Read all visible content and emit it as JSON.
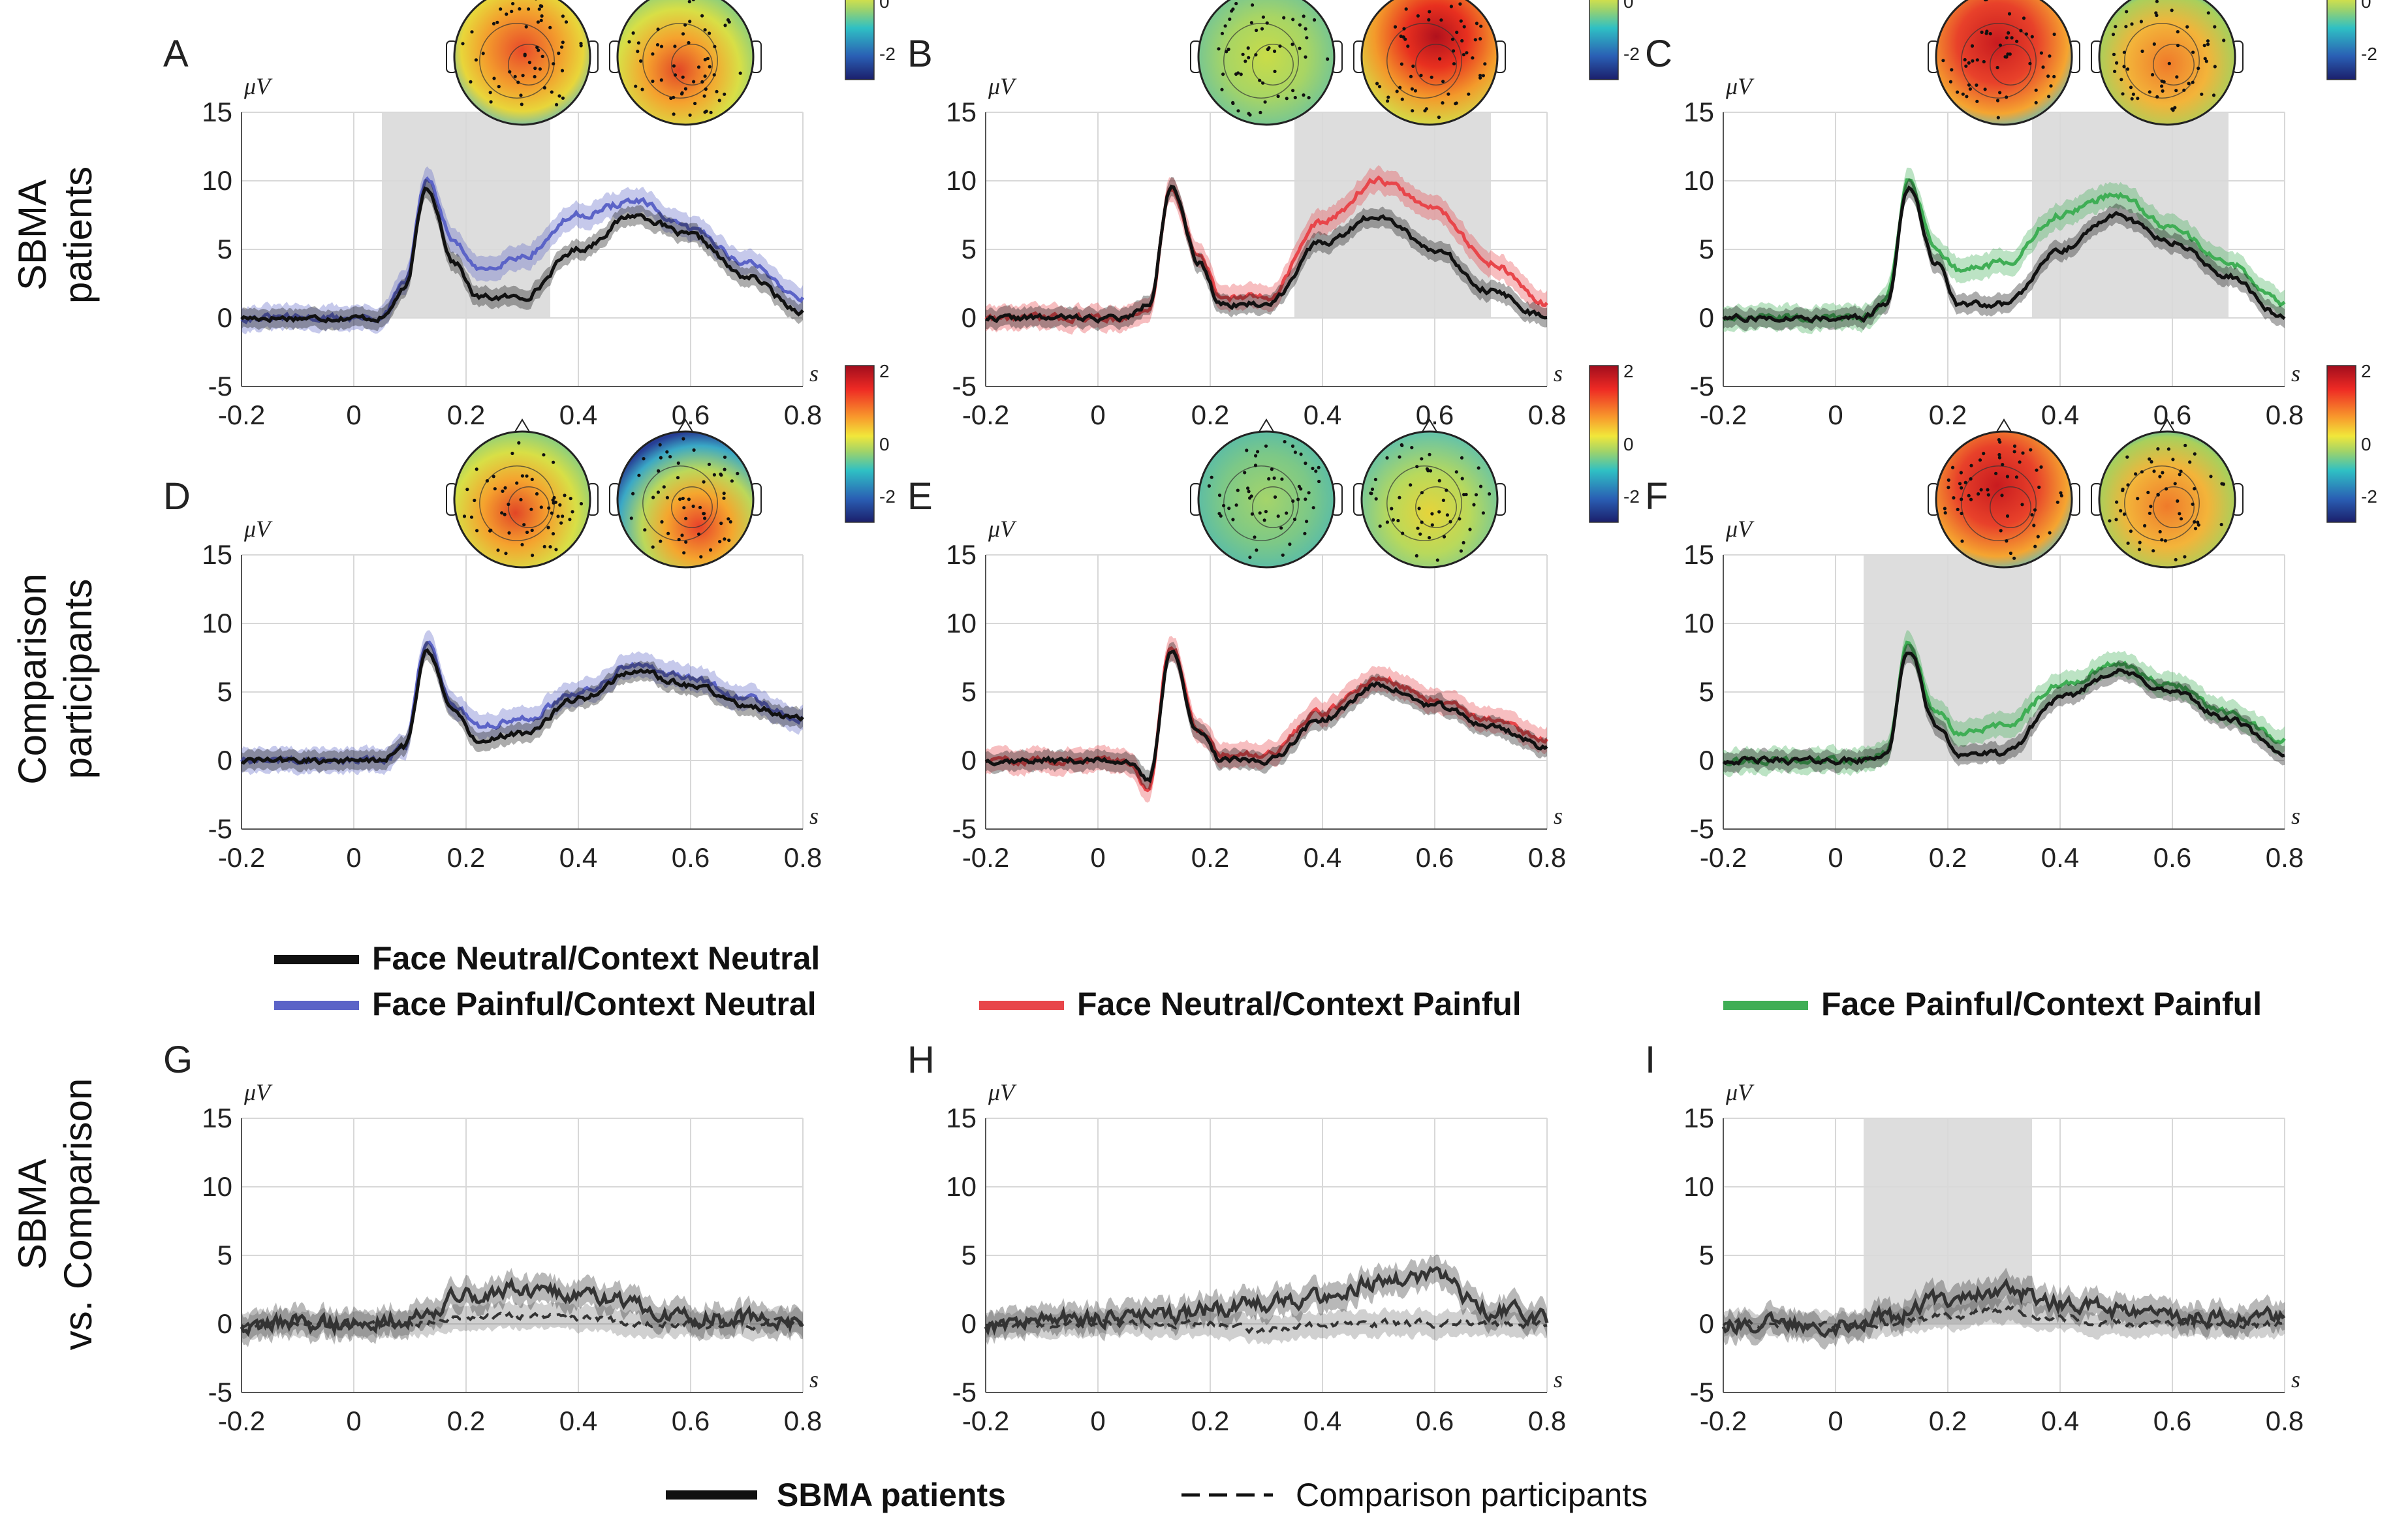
{
  "row_labels": {
    "row1": [
      "SBMA",
      "patients"
    ],
    "row2": [
      "Comparison",
      "participants"
    ],
    "row3": [
      "SBMA",
      "vs. Comparison"
    ]
  },
  "axes": {
    "y_unit": "μV",
    "x_unit": "s",
    "xlim": [
      -0.2,
      0.8
    ],
    "ylim": [
      -5,
      15
    ],
    "xticks": [
      -0.2,
      0,
      0.2,
      0.4,
      0.6,
      0.8
    ],
    "xtick_labels": [
      "-0.2",
      "0",
      "0.2",
      "0.4",
      "0.6",
      "0.8"
    ],
    "yticks": [
      -5,
      0,
      5,
      10,
      15
    ],
    "ytick_labels": [
      "-5",
      "0",
      "5",
      "10",
      "15"
    ]
  },
  "colorbar_ticks": [
    "2",
    "0",
    "-2"
  ],
  "legend_conditions": [
    {
      "label": "Face Neutral/Context Neutral",
      "color": "#111111"
    },
    {
      "label": "Face Painful/Context Neutral",
      "color": "#5b63c7"
    },
    {
      "label": "Face Neutral/Context Painful",
      "color": "#e8454a"
    },
    {
      "label": "Face Painful/Context Painful",
      "color": "#3fae55"
    }
  ],
  "legend_groups": [
    {
      "label": "SBMA patients",
      "style": "solid"
    },
    {
      "label": "Comparison participants",
      "style": "dashed"
    }
  ],
  "colors": {
    "black": "#111111",
    "blue": "#5b63c7",
    "red": "#e8454a",
    "green": "#3fae55",
    "gray": "#555555",
    "shade": "#d9d9d9"
  },
  "chart_data": [
    {
      "panel": "A",
      "type": "line",
      "xlabel": "s",
      "ylabel": "μV",
      "xlim": [
        -0.2,
        0.8
      ],
      "ylim": [
        -5,
        15
      ],
      "highlight": [
        0.05,
        0.35
      ],
      "colorbar": true,
      "topo_types": [
        1,
        2
      ],
      "series": [
        {
          "name": "Face Neutral/Context Neutral",
          "color": "black",
          "role": "base"
        },
        {
          "name": "Face Painful/Context Neutral",
          "color": "blue",
          "role": "cond"
        }
      ],
      "x_key": [
        -0.2,
        0.0,
        0.05,
        0.09,
        0.13,
        0.18,
        0.22,
        0.3,
        0.4,
        0.5,
        0.6,
        0.7,
        0.8
      ],
      "base_values": [
        0,
        0,
        0,
        2,
        9.5,
        4,
        1.5,
        1.5,
        5,
        7.5,
        6,
        3,
        0.5
      ],
      "cond_values": [
        0,
        0,
        0,
        2.5,
        10,
        5.5,
        3.5,
        4.5,
        7.5,
        8.5,
        6.5,
        4,
        1.5
      ]
    },
    {
      "panel": "B",
      "type": "line",
      "xlabel": "s",
      "ylabel": "μV",
      "xlim": [
        -0.2,
        0.8
      ],
      "ylim": [
        -5,
        15
      ],
      "highlight": [
        0.35,
        0.7
      ],
      "colorbar": true,
      "topo_types": [
        3,
        4
      ],
      "series": [
        {
          "name": "Face Neutral/Context Neutral",
          "color": "black",
          "role": "base"
        },
        {
          "name": "Face Neutral/Context Painful",
          "color": "red",
          "role": "cond"
        }
      ],
      "x_key": [
        -0.2,
        0.0,
        0.05,
        0.09,
        0.13,
        0.18,
        0.22,
        0.3,
        0.4,
        0.5,
        0.6,
        0.7,
        0.8
      ],
      "base_values": [
        0,
        0,
        0,
        1,
        9.5,
        4,
        1,
        1,
        5.5,
        7.5,
        5,
        2,
        0
      ],
      "cond_values": [
        0,
        0,
        0,
        0.5,
        9.5,
        4.5,
        1.5,
        1.5,
        7,
        10,
        8,
        4,
        1
      ]
    },
    {
      "panel": "C",
      "type": "line",
      "xlabel": "s",
      "ylabel": "μV",
      "xlim": [
        -0.2,
        0.8
      ],
      "ylim": [
        -5,
        15
      ],
      "highlight": [
        0.35,
        0.7
      ],
      "colorbar": true,
      "topo_types": [
        5,
        6
      ],
      "series": [
        {
          "name": "Face Neutral/Context Neutral",
          "color": "black",
          "role": "base"
        },
        {
          "name": "Face Painful/Context Painful",
          "color": "green",
          "role": "cond"
        }
      ],
      "x_key": [
        -0.2,
        0.0,
        0.05,
        0.09,
        0.13,
        0.18,
        0.22,
        0.3,
        0.4,
        0.5,
        0.6,
        0.7,
        0.8
      ],
      "base_values": [
        0,
        0,
        0,
        1,
        9.5,
        4,
        1,
        1,
        5,
        7.5,
        5.5,
        3,
        0
      ],
      "cond_values": [
        0,
        0,
        0,
        1.5,
        10,
        5,
        3.5,
        4,
        7.5,
        9,
        6.5,
        4,
        1
      ]
    },
    {
      "panel": "D",
      "type": "line",
      "xlabel": "s",
      "ylabel": "μV",
      "xlim": [
        -0.2,
        0.8
      ],
      "ylim": [
        -5,
        15
      ],
      "highlight": null,
      "colorbar": true,
      "topo_types": [
        2,
        7
      ],
      "series": [
        {
          "name": "Face Neutral/Context Neutral",
          "color": "black",
          "role": "base"
        },
        {
          "name": "Face Painful/Context Neutral",
          "color": "blue",
          "role": "cond"
        }
      ],
      "x_key": [
        -0.2,
        0.0,
        0.05,
        0.09,
        0.13,
        0.18,
        0.22,
        0.3,
        0.4,
        0.5,
        0.6,
        0.7,
        0.8
      ],
      "base_values": [
        0,
        0,
        0,
        1,
        8,
        3.5,
        1.5,
        2,
        4.5,
        6.5,
        5.5,
        4,
        3
      ],
      "cond_values": [
        0,
        0,
        0,
        1,
        8.5,
        4,
        2.5,
        3,
        5,
        7,
        6,
        4.5,
        3
      ]
    },
    {
      "panel": "E",
      "type": "line",
      "xlabel": "s",
      "ylabel": "μV",
      "xlim": [
        -0.2,
        0.8
      ],
      "ylim": [
        -5,
        15
      ],
      "highlight": null,
      "colorbar": true,
      "topo_types": [
        8,
        9
      ],
      "series": [
        {
          "name": "Face Neutral/Context Neutral",
          "color": "black",
          "role": "base"
        },
        {
          "name": "Face Neutral/Context Painful",
          "color": "red",
          "role": "cond"
        }
      ],
      "x_key": [
        -0.2,
        0.0,
        0.05,
        0.09,
        0.13,
        0.18,
        0.22,
        0.3,
        0.4,
        0.5,
        0.6,
        0.7,
        0.8
      ],
      "base_values": [
        0,
        0,
        0,
        -1.5,
        8,
        2,
        0,
        0,
        3,
        5.5,
        4,
        2.5,
        1
      ],
      "cond_values": [
        0,
        0,
        0,
        -2,
        8.5,
        2,
        0.5,
        0.5,
        3.5,
        6,
        4.5,
        3,
        1.5
      ]
    },
    {
      "panel": "F",
      "type": "line",
      "xlabel": "s",
      "ylabel": "μV",
      "xlim": [
        -0.2,
        0.8
      ],
      "ylim": [
        -5,
        15
      ],
      "highlight": [
        0.05,
        0.35
      ],
      "colorbar": true,
      "topo_types": [
        5,
        6
      ],
      "series": [
        {
          "name": "Face Neutral/Context Neutral",
          "color": "black",
          "role": "base"
        },
        {
          "name": "Face Painful/Context Painful",
          "color": "green",
          "role": "cond"
        }
      ],
      "x_key": [
        -0.2,
        0.0,
        0.05,
        0.09,
        0.13,
        0.18,
        0.22,
        0.3,
        0.4,
        0.5,
        0.6,
        0.7,
        0.8
      ],
      "base_values": [
        0,
        0,
        0,
        0.5,
        8,
        2.5,
        0.5,
        0.5,
        4.5,
        6.5,
        5,
        3,
        0.5
      ],
      "cond_values": [
        0,
        0,
        0,
        0.5,
        8.5,
        3.5,
        2,
        2.5,
        5.5,
        7,
        5.5,
        3.5,
        1.5
      ]
    },
    {
      "panel": "G",
      "type": "line",
      "xlabel": "s",
      "ylabel": "μV",
      "xlim": [
        -0.2,
        0.8
      ],
      "ylim": [
        -5,
        15
      ],
      "highlight": null,
      "colorbar": false,
      "topo_types": [],
      "series": [
        {
          "name": "SBMA patients",
          "color": "black",
          "role": "solid"
        },
        {
          "name": "Comparison participants",
          "color": "black",
          "role": "dashed"
        }
      ],
      "x_key": [
        -0.2,
        0.0,
        0.1,
        0.2,
        0.3,
        0.4,
        0.5,
        0.6,
        0.7,
        0.8
      ],
      "solid_values": [
        0,
        0,
        0.5,
        2,
        2.5,
        2,
        1.5,
        0.5,
        0.3,
        0
      ],
      "dashed_values": [
        0,
        0,
        0,
        0.5,
        0.5,
        0.5,
        0,
        0,
        0,
        0
      ]
    },
    {
      "panel": "H",
      "type": "line",
      "xlabel": "s",
      "ylabel": "μV",
      "xlim": [
        -0.2,
        0.8
      ],
      "ylim": [
        -5,
        15
      ],
      "highlight": null,
      "colorbar": false,
      "topo_types": [],
      "series": [
        {
          "name": "SBMA patients",
          "color": "black",
          "role": "solid"
        },
        {
          "name": "Comparison participants",
          "color": "black",
          "role": "dashed"
        }
      ],
      "x_key": [
        -0.2,
        0.0,
        0.1,
        0.2,
        0.3,
        0.4,
        0.5,
        0.6,
        0.7,
        0.8
      ],
      "solid_values": [
        0,
        0.5,
        0.5,
        1,
        1.5,
        2,
        3,
        3.5,
        1,
        0.5
      ],
      "dashed_values": [
        0,
        0,
        0,
        0,
        -0.5,
        0,
        0,
        0,
        0,
        0
      ]
    },
    {
      "panel": "I",
      "type": "line",
      "xlabel": "s",
      "ylabel": "μV",
      "xlim": [
        -0.2,
        0.8
      ],
      "ylim": [
        -5,
        15
      ],
      "highlight": [
        0.05,
        0.35
      ],
      "colorbar": false,
      "topo_types": [],
      "series": [
        {
          "name": "SBMA patients",
          "color": "black",
          "role": "solid"
        },
        {
          "name": "Comparison participants",
          "color": "black",
          "role": "dashed"
        }
      ],
      "x_key": [
        -0.2,
        0.0,
        0.1,
        0.2,
        0.3,
        0.4,
        0.5,
        0.6,
        0.7,
        0.8
      ],
      "solid_values": [
        0,
        0,
        0.5,
        2,
        2.5,
        1.5,
        1,
        0.5,
        0.5,
        0.5
      ],
      "dashed_values": [
        0,
        0,
        0,
        0.5,
        1,
        0.5,
        0,
        0,
        0,
        0
      ]
    }
  ]
}
